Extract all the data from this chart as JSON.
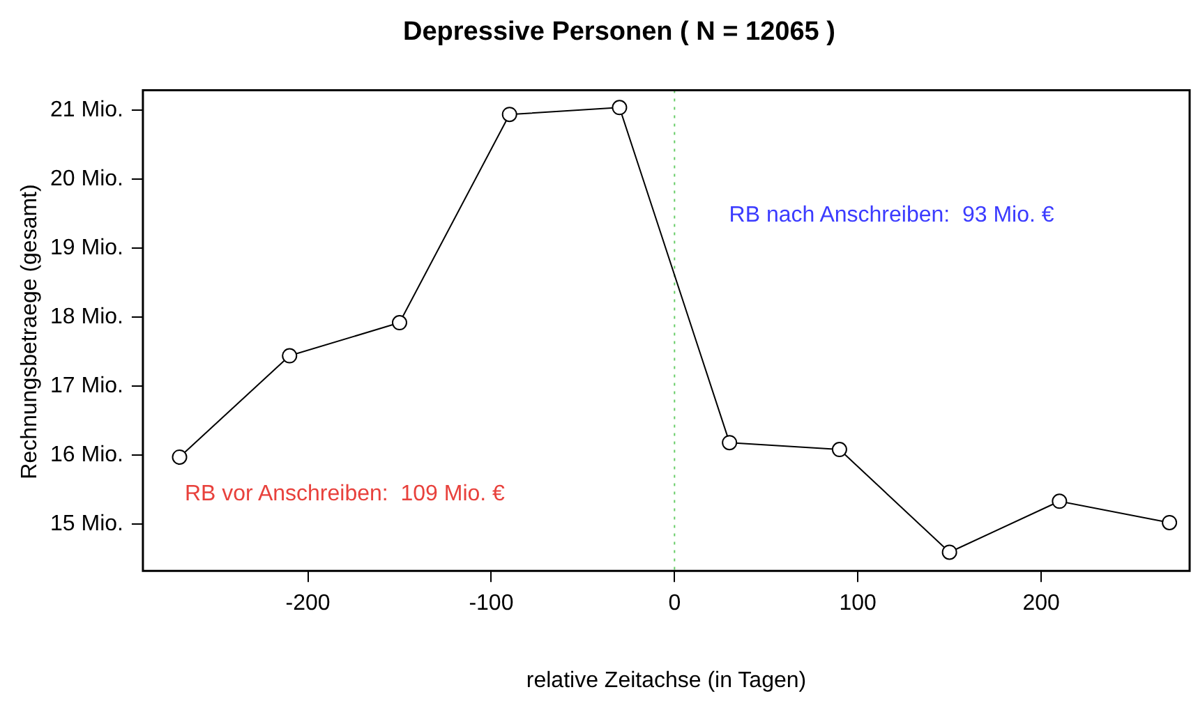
{
  "chart_data": {
    "type": "line",
    "title": "Depressive Personen ( N = 12065 )",
    "xlabel": "relative Zeitachse (in Tagen)",
    "ylabel": "Rechnungsbetraege (gesamt)",
    "x": [
      -270,
      -210,
      -150,
      -90,
      -30,
      30,
      90,
      150,
      210,
      270
    ],
    "series": [
      {
        "color": "#000000",
        "values": [
          15.97,
          17.44,
          17.92,
          20.94,
          21.04,
          16.18,
          16.08,
          14.59,
          15.33,
          15.02
        ]
      }
    ],
    "xlim": [
      -290,
      281
    ],
    "xticks": [
      -200,
      -100,
      0,
      100,
      200
    ],
    "ylim": [
      14.32,
      21.29
    ],
    "yticks": [
      {
        "value": 15,
        "label": "15 Mio."
      },
      {
        "value": 16,
        "label": "16 Mio."
      },
      {
        "value": 17,
        "label": "17 Mio."
      },
      {
        "value": 18,
        "label": "18 Mio."
      },
      {
        "value": 19,
        "label": "19 Mio."
      },
      {
        "value": 20,
        "label": "20 Mio."
      },
      {
        "value": 21,
        "label": "21 Mio."
      }
    ],
    "ref_lines": [
      {
        "axis": "x",
        "value": 0,
        "color": "#66cc66",
        "line_style": "dotted"
      }
    ],
    "annotations": [
      "RB vor Anschreiben:  109 Mio. €",
      "RB nach Anschreiben:  93 Mio. €"
    ],
    "grid": false,
    "legend": false,
    "marker": "circle",
    "line_style": "solid"
  }
}
